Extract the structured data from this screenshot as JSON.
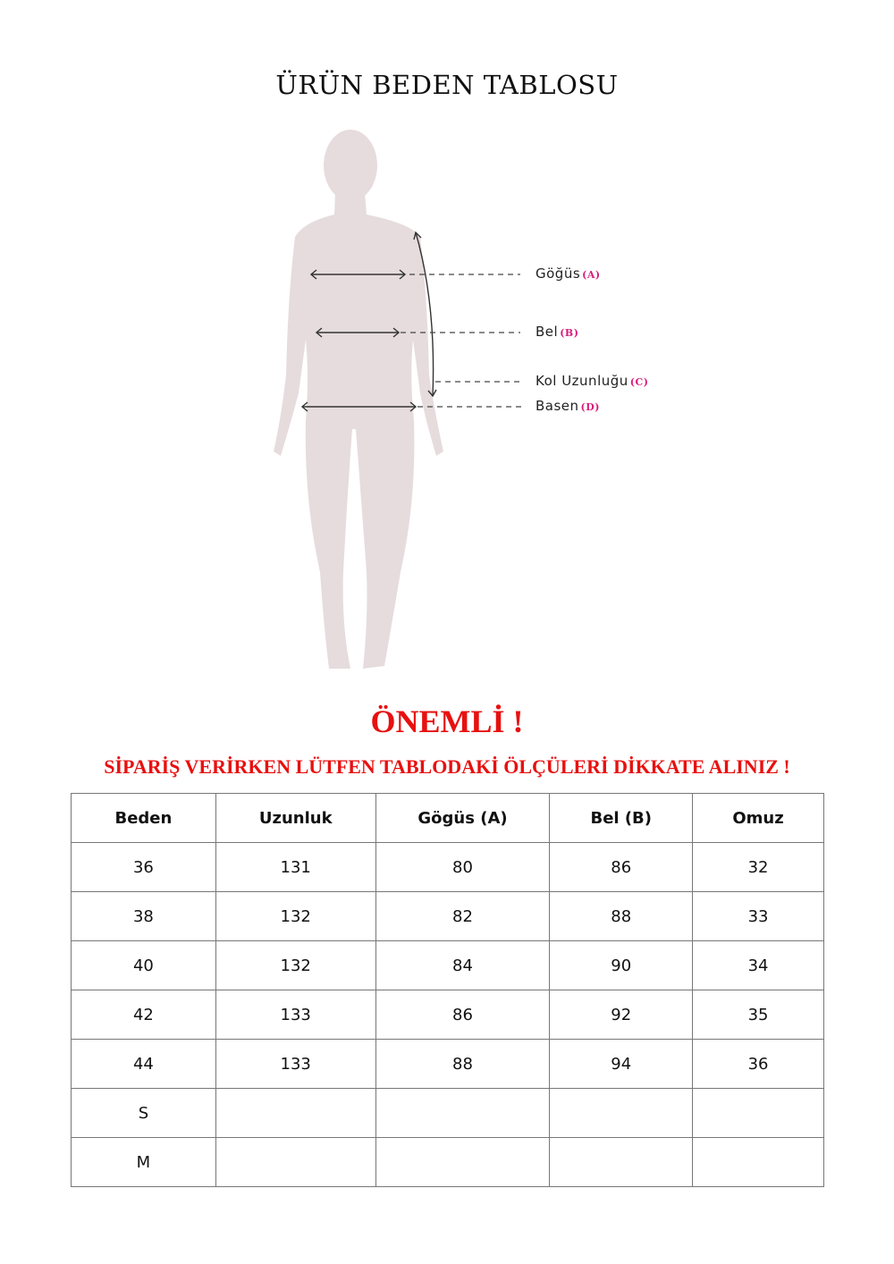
{
  "title": "ÜRÜN BEDEN TABLOSU",
  "figure": {
    "labels": [
      {
        "text": "Göğüs",
        "key": "(A)"
      },
      {
        "text": "Bel",
        "key": "(B)"
      },
      {
        "text": "Kol Uzunluğu",
        "key": "(C)"
      },
      {
        "text": "Basen",
        "key": "(D)"
      }
    ],
    "silhouette_color": "#e6dcdd",
    "key_color": "#d81b7a"
  },
  "notice": {
    "heading": "ÖNEMLİ !",
    "message": "SİPARİŞ VERİRKEN LÜTFEN TABLODAKİ ÖLÇÜLERİ DİKKATE ALINIZ !",
    "color": "#e81010"
  },
  "table": {
    "headers": [
      "Beden",
      "Uzunluk",
      "Gögüs (A)",
      "Bel (B)",
      "Omuz"
    ],
    "rows": [
      [
        "36",
        "131",
        "80",
        "86",
        "32"
      ],
      [
        "38",
        "132",
        "82",
        "88",
        "33"
      ],
      [
        "40",
        "132",
        "84",
        "90",
        "34"
      ],
      [
        "42",
        "133",
        "86",
        "92",
        "35"
      ],
      [
        "44",
        "133",
        "88",
        "94",
        "36"
      ],
      [
        "S",
        "",
        "",
        "",
        ""
      ],
      [
        "M",
        "",
        "",
        "",
        ""
      ]
    ]
  }
}
